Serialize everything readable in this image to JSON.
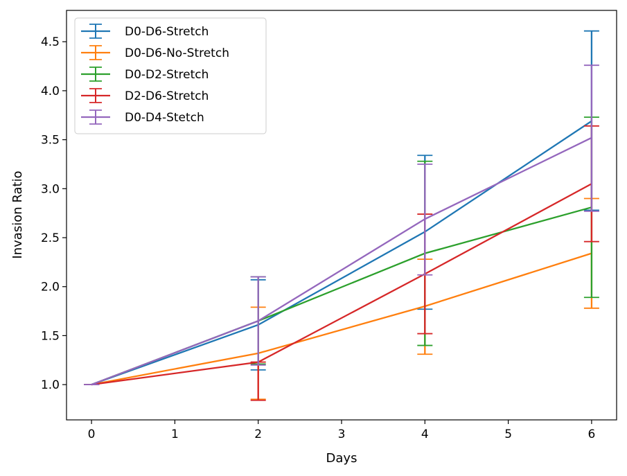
{
  "chart_data": {
    "type": "line",
    "title": "",
    "xlabel": "Days",
    "ylabel": "Invasion Ratio",
    "x": [
      0,
      2,
      4,
      6
    ],
    "xlim": [
      -0.3,
      6.3
    ],
    "ylim": [
      0.64,
      4.82
    ],
    "xticks": [
      0,
      1,
      2,
      3,
      4,
      5,
      6
    ],
    "yticks": [
      1.0,
      1.5,
      2.0,
      2.5,
      3.0,
      3.5,
      4.0,
      4.5
    ],
    "xtick_labels": [
      "0",
      "1",
      "2",
      "3",
      "4",
      "5",
      "6"
    ],
    "ytick_labels": [
      "1.0",
      "1.5",
      "2.0",
      "2.5",
      "3.0",
      "3.5",
      "4.0",
      "4.5"
    ],
    "grid": false,
    "legend_position": "top-left",
    "series": [
      {
        "name": "D0-D6-Stretch",
        "color": "#1f77b4",
        "values": [
          1.0,
          1.61,
          2.56,
          3.69
        ],
        "err_low": [
          1.0,
          1.15,
          1.77,
          2.78
        ],
        "err_high": [
          1.0,
          2.07,
          3.34,
          4.61
        ]
      },
      {
        "name": "D0-D6-No-Stretch",
        "color": "#ff7f0e",
        "values": [
          1.0,
          1.32,
          1.8,
          2.34
        ],
        "err_low": [
          1.0,
          0.85,
          1.31,
          1.78
        ],
        "err_high": [
          1.0,
          1.79,
          2.28,
          2.9
        ]
      },
      {
        "name": "D0-D2-Stretch",
        "color": "#2ca02c",
        "values": [
          1.0,
          1.65,
          2.34,
          2.81
        ],
        "err_low": [
          1.0,
          1.21,
          1.4,
          1.89
        ],
        "err_high": [
          1.0,
          2.1,
          3.28,
          3.73
        ]
      },
      {
        "name": "D2-D6-Stretch",
        "color": "#d62728",
        "values": [
          1.0,
          1.23,
          2.13,
          3.05
        ],
        "err_low": [
          1.0,
          0.84,
          1.52,
          2.46
        ],
        "err_high": [
          1.0,
          1.23,
          2.74,
          3.64
        ]
      },
      {
        "name": "D0-D4-Stetch",
        "color": "#9467bd",
        "values": [
          1.0,
          1.65,
          2.69,
          3.52
        ],
        "err_low": [
          1.0,
          1.2,
          2.12,
          2.77
        ],
        "err_high": [
          1.0,
          2.1,
          3.25,
          4.26
        ]
      }
    ]
  }
}
